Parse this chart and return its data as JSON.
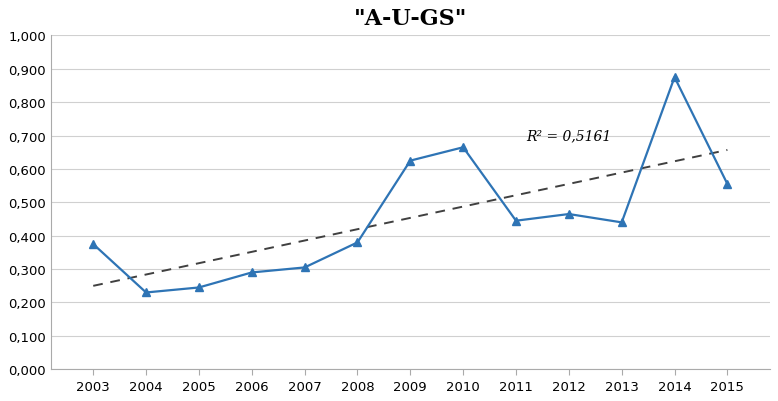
{
  "title": "\"A-U-GS\"",
  "years": [
    2003,
    2004,
    2005,
    2006,
    2007,
    2008,
    2009,
    2010,
    2011,
    2012,
    2013,
    2014,
    2015
  ],
  "values": [
    0.375,
    0.23,
    0.245,
    0.29,
    0.305,
    0.38,
    0.625,
    0.665,
    0.445,
    0.465,
    0.44,
    0.875,
    0.555
  ],
  "line_color": "#2E74B5",
  "trend_color": "#404040",
  "r_squared": "R² = 0,5161",
  "r_squared_x": 2011.2,
  "r_squared_y": 0.688,
  "ylim": [
    0.0,
    1.0
  ],
  "ytick_step": 0.1,
  "background_color": "#ffffff",
  "grid_color": "#d0d0d0",
  "title_fontsize": 16,
  "tick_fontsize": 9.5,
  "annotation_fontsize": 10
}
